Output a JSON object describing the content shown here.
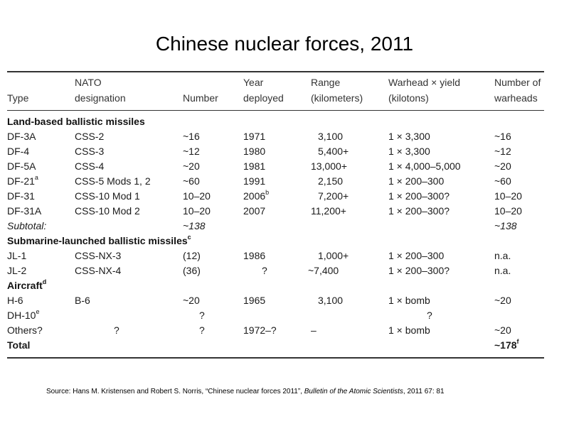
{
  "title": "Chinese nuclear forces, 2011",
  "table": {
    "headers": {
      "type": "Type",
      "nato_line1": "NATO",
      "nato_line2": "designation",
      "number": "Number",
      "year_line1": "Year",
      "year_line2": "deployed",
      "range_line1": "Range",
      "range_line2": "(kilometers)",
      "warhead_line1": "Warhead × yield",
      "warhead_line2": "(kilotons)",
      "warheads_line1": "Number of",
      "warheads_line2": "warheads"
    },
    "sections": {
      "land": "Land-based ballistic missiles",
      "sub": "Submarine-launched ballistic missiles",
      "sub_note": "c",
      "aircraft": "Aircraft",
      "aircraft_note": "d"
    },
    "rows": [
      {
        "type": "DF-3A",
        "type_note": "",
        "nato": "CSS-2",
        "number": "~16",
        "year": "1971",
        "year_note": "",
        "range": "3,100",
        "warhead": "1 × 3,300",
        "warheads": "~16",
        "warheads_note": ""
      },
      {
        "type": "DF-4",
        "type_note": "",
        "nato": "CSS-3",
        "number": "~12",
        "year": "1980",
        "year_note": "",
        "range": "5,400+",
        "warhead": "1 × 3,300",
        "warheads": "~12",
        "warheads_note": ""
      },
      {
        "type": "DF-5A",
        "type_note": "",
        "nato": "CSS-4",
        "number": "~20",
        "year": "1981",
        "year_note": "",
        "range": "13,000+",
        "warhead": "1 × 4,000–5,000",
        "warheads": "~20",
        "warheads_note": ""
      },
      {
        "type": "DF-21",
        "type_note": "a",
        "nato": "CSS-5 Mods 1, 2",
        "number": "~60",
        "year": "1991",
        "year_note": "",
        "range": "2,150",
        "warhead": "1 × 200–300",
        "warheads": "~60",
        "warheads_note": ""
      },
      {
        "type": "DF-31",
        "type_note": "",
        "nato": "CSS-10 Mod 1",
        "number": "10–20",
        "year": "2006",
        "year_note": "b",
        "range": "7,200+",
        "warhead": "1 × 200–300?",
        "warheads": "10–20",
        "warheads_note": ""
      },
      {
        "type": "DF-31A",
        "type_note": "",
        "nato": "CSS-10 Mod 2",
        "number": "10–20",
        "year": "2007",
        "year_note": "",
        "range": "11,200+",
        "warhead": "1 × 200–300?",
        "warheads": "10–20",
        "warheads_note": ""
      },
      {
        "type": "Subtotal:",
        "type_note": "",
        "nato": "",
        "number": "~138",
        "year": "",
        "year_note": "",
        "range": "",
        "warhead": "",
        "warheads": "~138",
        "warheads_note": ""
      },
      {
        "type": "JL-1",
        "type_note": "",
        "nato": "CSS-NX-3",
        "number": "(12)",
        "year": "1986",
        "year_note": "",
        "range": "1,000+",
        "warhead": "1 × 200–300",
        "warheads": "n.a.",
        "warheads_note": ""
      },
      {
        "type": "JL-2",
        "type_note": "",
        "nato": "CSS-NX-4",
        "number": "(36)",
        "year": "?",
        "year_note": "",
        "range": "~7,400",
        "warhead": "1 × 200–300?",
        "warheads": "n.a.",
        "warheads_note": ""
      },
      {
        "type": "H-6",
        "type_note": "",
        "nato": "B-6",
        "number": "~20",
        "year": "1965",
        "year_note": "",
        "range": "3,100",
        "warhead": "1 × bomb",
        "warheads": "~20",
        "warheads_note": ""
      },
      {
        "type": "DH-10",
        "type_note": "e",
        "nato": "",
        "number": "?",
        "year": "",
        "year_note": "",
        "range": "",
        "warhead": "?",
        "warheads": "",
        "warheads_note": ""
      },
      {
        "type": "Others?",
        "type_note": "",
        "nato": "?",
        "number": "?",
        "year": "1972–?",
        "year_note": "",
        "range": "–",
        "warhead": "1 × bomb",
        "warheads": "~20",
        "warheads_note": ""
      },
      {
        "type": "Total",
        "type_note": "",
        "nato": "",
        "number": "",
        "year": "",
        "year_note": "",
        "range": "",
        "warhead": "",
        "warheads": "~178",
        "warheads_note": "f"
      }
    ]
  },
  "source": {
    "prefix": "Source: Hans M. Kristensen and Robert S. Norris, “Chinese nuclear forces 2011”, ",
    "journal": "Bulletin of the Atomic Scientists",
    "suffix": ", 2011 67: 81"
  }
}
